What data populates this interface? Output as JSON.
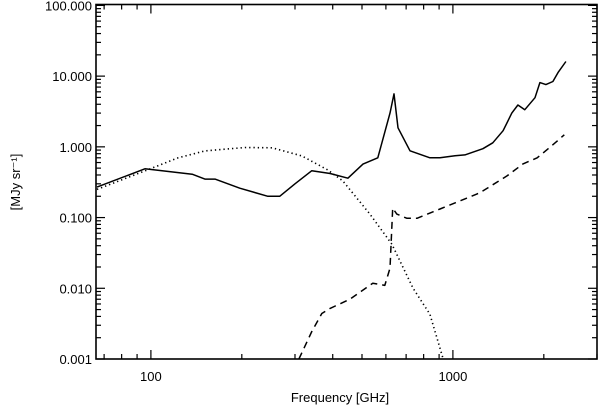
{
  "chart_data": {
    "type": "line",
    "title": "",
    "xlabel": "Frequency [GHz]",
    "ylabel": "[MJy sr⁻¹]",
    "xscale": "log",
    "yscale": "log",
    "xlim": [
      65.8,
      3000
    ],
    "ylim": [
      0.001,
      103
    ],
    "x_ticks": [
      {
        "value": 100,
        "label": "100"
      },
      {
        "value": 1000,
        "label": "1000"
      }
    ],
    "y_ticks": [
      {
        "value": 0.001,
        "label": "0.001"
      },
      {
        "value": 0.01,
        "label": "0.010"
      },
      {
        "value": 0.1,
        "label": "0.100"
      },
      {
        "value": 1,
        "label": "1.000"
      },
      {
        "value": 10,
        "label": "10.000"
      },
      {
        "value": 100,
        "label": "100.000"
      }
    ],
    "grid": false,
    "legend": "none",
    "series": [
      {
        "name": "solid",
        "style": "solid",
        "x": [
          66.3,
          95.5,
          137,
          151,
          163,
          197,
          244,
          267,
          300,
          341,
          392,
          449,
          504,
          564,
          619,
          638,
          658,
          721,
          839,
          906,
          1016,
          1096,
          1257,
          1355,
          1466,
          1567,
          1641,
          1730,
          1870,
          1941,
          2032,
          2143,
          2228,
          2366
        ],
        "y": [
          0.27,
          0.49,
          0.41,
          0.35,
          0.35,
          0.26,
          0.2,
          0.2,
          0.3,
          0.46,
          0.42,
          0.36,
          0.57,
          0.7,
          3.0,
          5.6,
          1.86,
          0.88,
          0.7,
          0.7,
          0.75,
          0.77,
          0.94,
          1.14,
          1.69,
          3.0,
          3.9,
          3.35,
          4.95,
          8.1,
          7.6,
          8.4,
          11.2,
          16.1
        ]
      },
      {
        "name": "dashed",
        "style": "dashed",
        "x": [
          309,
          341,
          368,
          392,
          456,
          543,
          595,
          619,
          632,
          652,
          703,
          762,
          906,
          1200,
          1257,
          1510,
          1706,
          1901,
          2122,
          2338
        ],
        "y": [
          0.001,
          0.00245,
          0.0044,
          0.0052,
          0.007,
          0.0118,
          0.011,
          0.0192,
          0.136,
          0.112,
          0.098,
          0.098,
          0.132,
          0.215,
          0.238,
          0.388,
          0.574,
          0.7,
          1.03,
          1.48
        ]
      },
      {
        "name": "dotted",
        "style": "dotted",
        "x": [
          66.3,
          95.5,
          122.9,
          151,
          205,
          252,
          316,
          385,
          432,
          531,
          628,
          738,
          839,
          927
        ],
        "y": [
          0.25,
          0.457,
          0.698,
          0.877,
          0.98,
          0.968,
          0.745,
          0.472,
          0.33,
          0.112,
          0.042,
          0.01,
          0.0043,
          0.00102
        ]
      }
    ]
  }
}
